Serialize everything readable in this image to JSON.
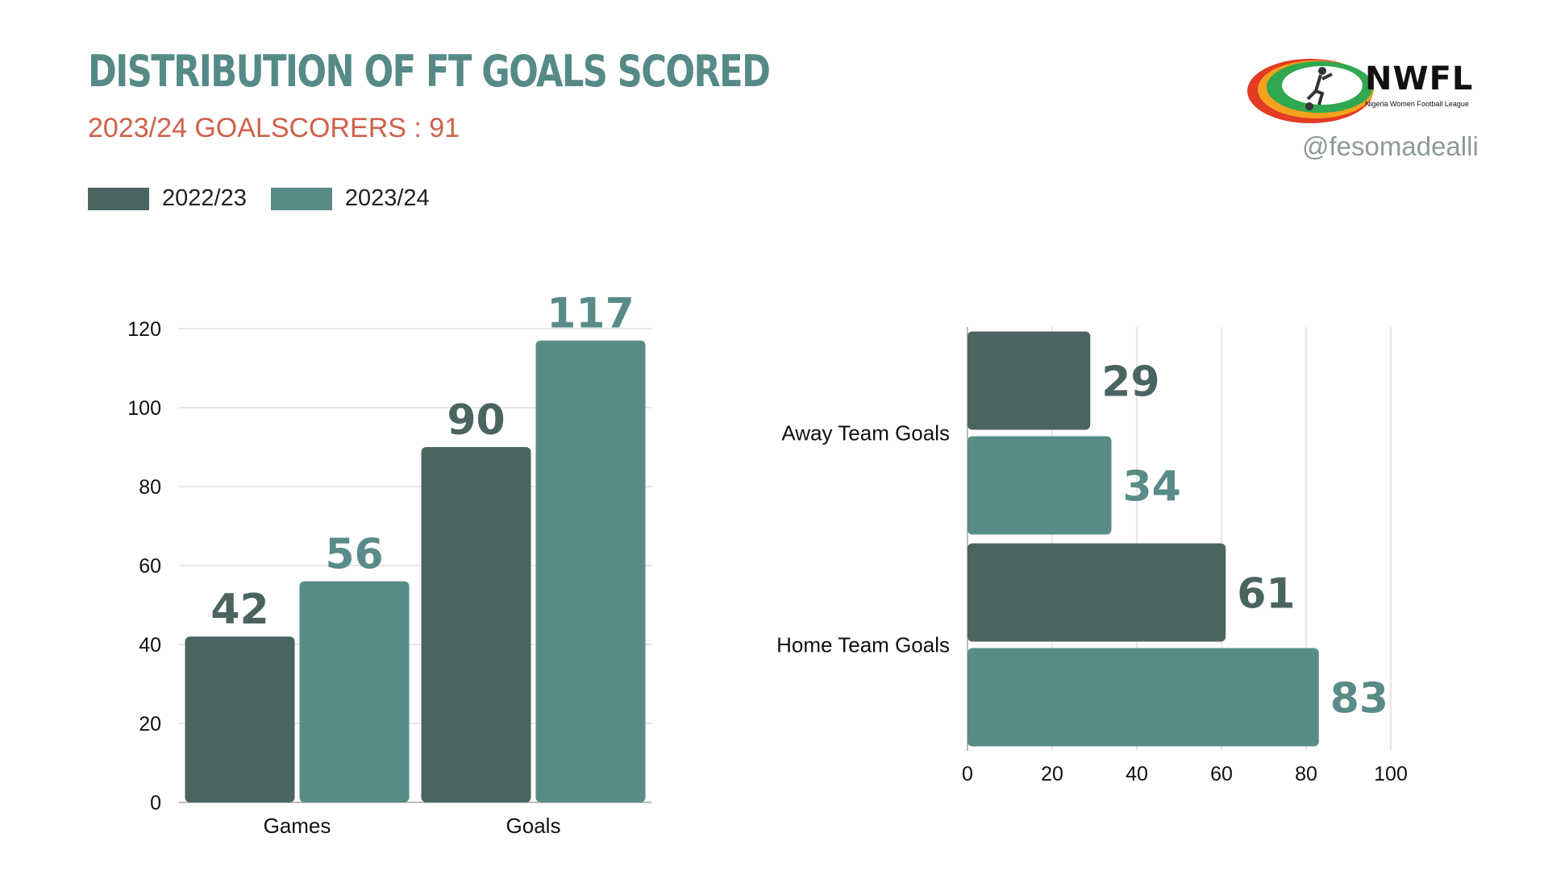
{
  "header": {
    "title": "DISTRIBUTION OF FT GOALS SCORED",
    "subtitle": "2023/24 GOALSCORERS : 91",
    "handle": "@fesomadealli"
  },
  "logo": {
    "name": "NWFL",
    "tagline": "Nigeria Women Football League"
  },
  "colors": {
    "series_2022_23": "#4a6462",
    "series_2023_24": "#598b88",
    "title": "#558a87",
    "subtitle": "#d0614a",
    "grid": "#dddddd"
  },
  "legend": [
    {
      "name": "2022/23",
      "color": "#4a6462"
    },
    {
      "name": "2023/24",
      "color": "#598b88"
    }
  ],
  "chart_data": [
    {
      "type": "bar",
      "orientation": "vertical",
      "categories": [
        "Games",
        "Goals"
      ],
      "series": [
        {
          "name": "2022/23",
          "values": [
            42,
            90
          ]
        },
        {
          "name": "2023/24",
          "values": [
            56,
            117
          ]
        }
      ],
      "ylim": [
        0,
        120
      ],
      "yticks": [
        0,
        20,
        40,
        60,
        80,
        100,
        120
      ],
      "grid": true
    },
    {
      "type": "bar",
      "orientation": "horizontal",
      "categories": [
        "Away Team Goals",
        "Home Team Goals"
      ],
      "series": [
        {
          "name": "2022/23",
          "values": [
            29,
            61
          ]
        },
        {
          "name": "2023/24",
          "values": [
            34,
            83
          ]
        }
      ],
      "xlim": [
        0,
        100
      ],
      "xticks": [
        0,
        20,
        40,
        60,
        80,
        100
      ],
      "grid": true
    }
  ]
}
